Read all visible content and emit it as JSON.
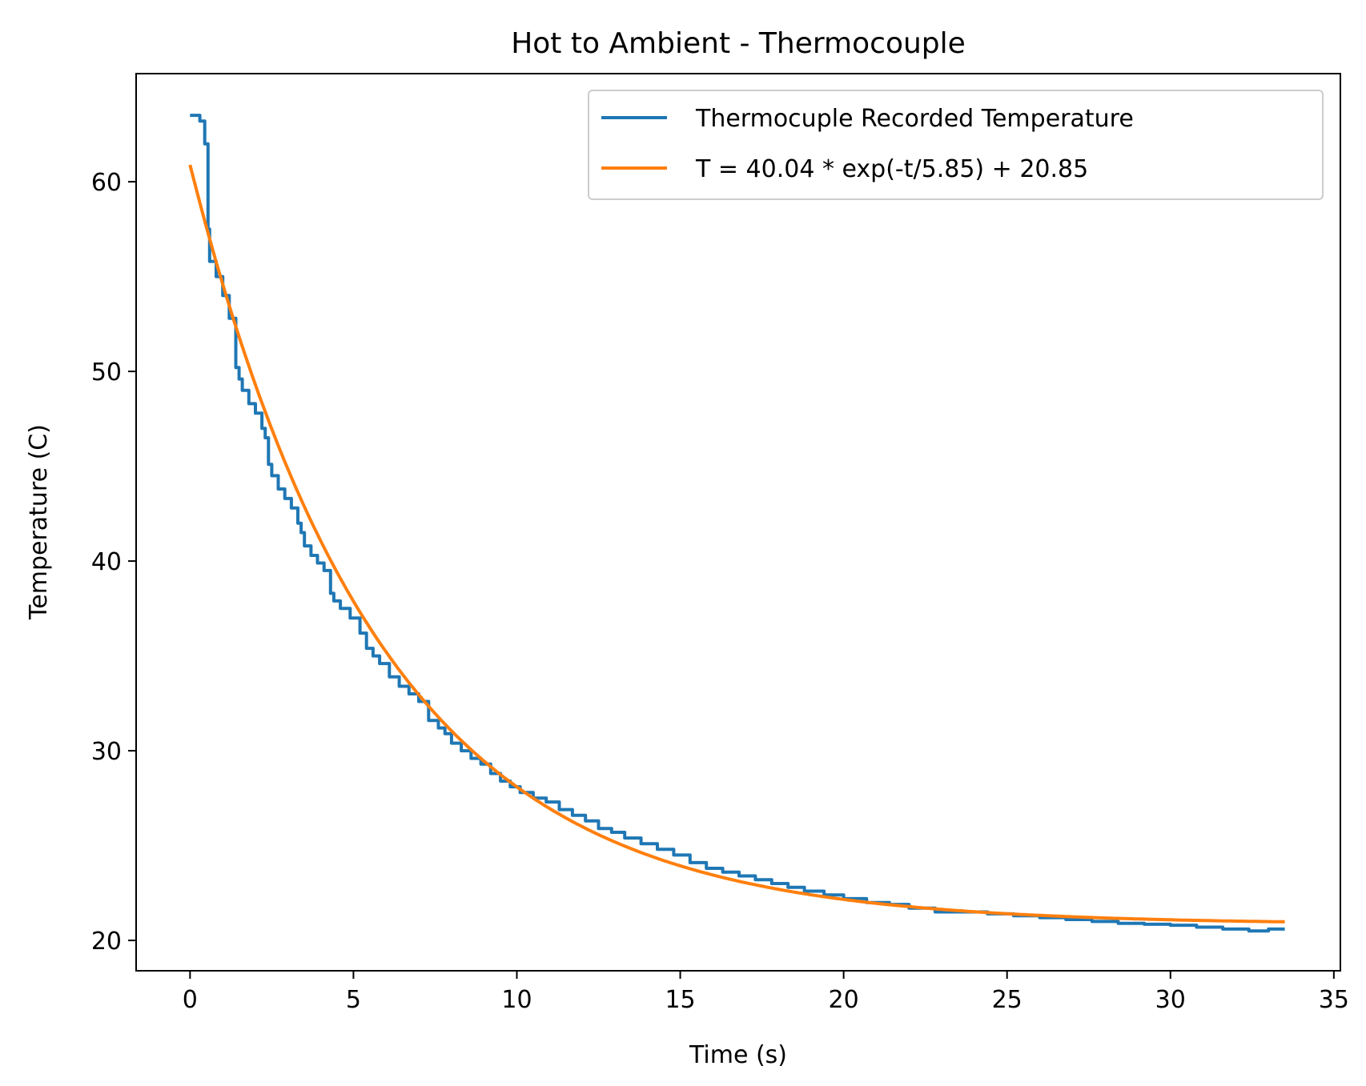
{
  "chart_data": {
    "type": "line",
    "title": "Hot to Ambient - Thermocouple",
    "xlabel": "Time (s)",
    "ylabel": "Temperature (C)",
    "xlim": [
      -1.65,
      35.2
    ],
    "ylim": [
      18.4,
      65.7
    ],
    "xticks": [
      0,
      5,
      10,
      15,
      20,
      25,
      30,
      35
    ],
    "yticks": [
      20,
      30,
      40,
      50,
      60
    ],
    "grid": false,
    "legend_position": "top-right",
    "series": [
      {
        "name": "Thermocuple Recorded Temperature",
        "color": "#1f77b4",
        "style": "step",
        "x": [
          0,
          0.3,
          0.45,
          0.55,
          0.6,
          0.8,
          1.0,
          1.2,
          1.4,
          1.5,
          1.6,
          1.8,
          2.0,
          2.2,
          2.3,
          2.4,
          2.5,
          2.7,
          2.9,
          3.1,
          3.3,
          3.4,
          3.5,
          3.7,
          3.9,
          4.1,
          4.3,
          4.4,
          4.6,
          4.9,
          5.2,
          5.4,
          5.6,
          5.8,
          6.1,
          6.4,
          6.7,
          7.0,
          7.3,
          7.6,
          7.8,
          8.0,
          8.3,
          8.6,
          8.9,
          9.2,
          9.5,
          9.8,
          10.1,
          10.5,
          10.9,
          11.3,
          11.7,
          12.1,
          12.5,
          12.9,
          13.3,
          13.8,
          14.3,
          14.8,
          15.3,
          15.8,
          16.3,
          16.8,
          17.3,
          17.8,
          18.3,
          18.8,
          19.4,
          20.0,
          20.7,
          21.4,
          22.0,
          22.8,
          23.6,
          24.4,
          25.2,
          26.0,
          26.8,
          27.6,
          28.4,
          29.2,
          30.0,
          30.8,
          31.6,
          32.4,
          33.0,
          33.5
        ],
        "y": [
          63.5,
          63.2,
          62.0,
          57.5,
          55.8,
          55.0,
          54.0,
          52.8,
          50.2,
          49.6,
          49.0,
          48.3,
          47.8,
          47.0,
          46.5,
          45.1,
          44.5,
          43.8,
          43.3,
          42.8,
          42.0,
          41.5,
          40.8,
          40.3,
          39.9,
          39.5,
          38.3,
          37.9,
          37.5,
          37.0,
          36.2,
          35.4,
          35.0,
          34.6,
          33.9,
          33.4,
          33.0,
          32.6,
          31.6,
          31.2,
          30.9,
          30.4,
          30.0,
          29.6,
          29.3,
          28.8,
          28.4,
          28.1,
          27.8,
          27.5,
          27.3,
          26.9,
          26.6,
          26.3,
          25.9,
          25.7,
          25.4,
          25.1,
          24.8,
          24.5,
          24.1,
          23.8,
          23.6,
          23.4,
          23.2,
          23.0,
          22.8,
          22.6,
          22.4,
          22.2,
          22.0,
          21.9,
          21.7,
          21.5,
          21.5,
          21.4,
          21.3,
          21.2,
          21.1,
          21.0,
          20.9,
          20.85,
          20.8,
          20.7,
          20.6,
          20.5,
          20.6,
          20.6
        ]
      },
      {
        "name": "T = 40.04 * exp(-t/5.85) + 20.85",
        "color": "#ff7f0e",
        "style": "function",
        "function": {
          "A": 40.04,
          "tau": 5.85,
          "C": 20.85,
          "t_start": 0,
          "t_end": 33.5
        }
      }
    ]
  }
}
